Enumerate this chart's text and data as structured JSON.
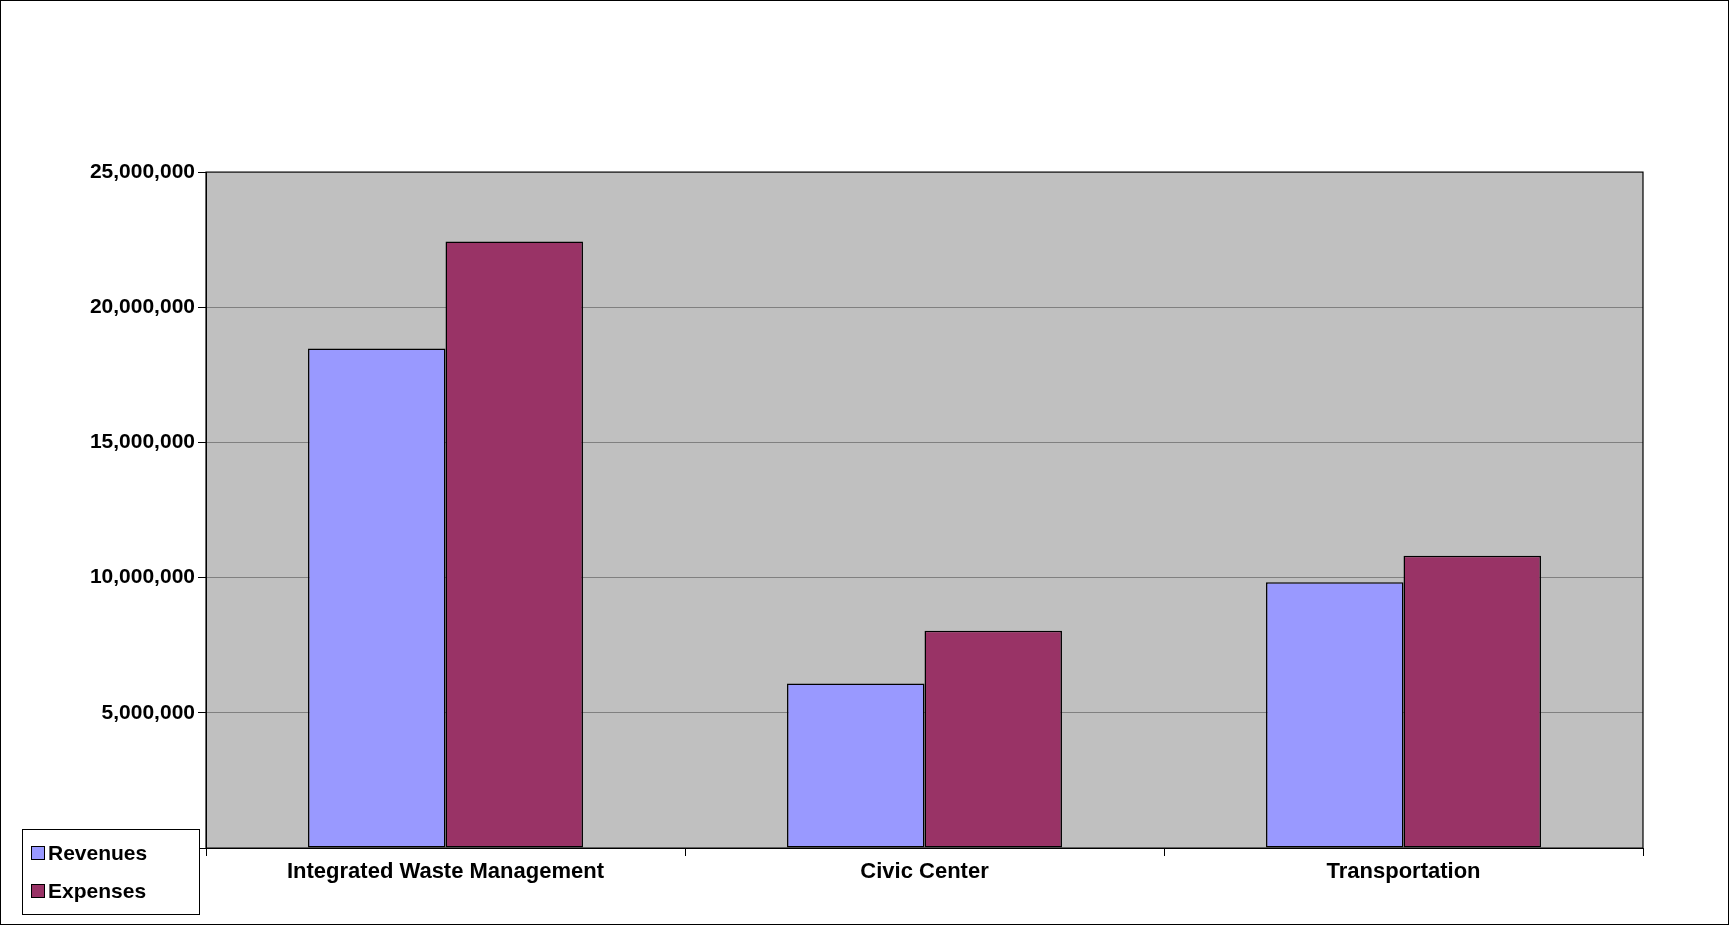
{
  "chart_data": {
    "type": "bar",
    "categories": [
      "Integrated Waste Management",
      "Civic Center",
      "Transportation"
    ],
    "series": [
      {
        "name": "Revenues",
        "color": "#9999ff",
        "values": [
          18470000,
          6080000,
          9830000
        ]
      },
      {
        "name": "Expenses",
        "color": "#993366",
        "values": [
          22430000,
          8030000,
          10810000
        ]
      }
    ],
    "ylim": [
      0,
      25000000
    ],
    "yticks": [
      {
        "value": 0,
        "label": null
      },
      {
        "value": 5000000,
        "label": "5,000,000"
      },
      {
        "value": 10000000,
        "label": "10,000,000"
      },
      {
        "value": 15000000,
        "label": "15,000,000"
      },
      {
        "value": 20000000,
        "label": "20,000,000"
      },
      {
        "value": 25000000,
        "label": "25,000,000"
      }
    ],
    "grid": "y",
    "legend": "bottom left"
  }
}
